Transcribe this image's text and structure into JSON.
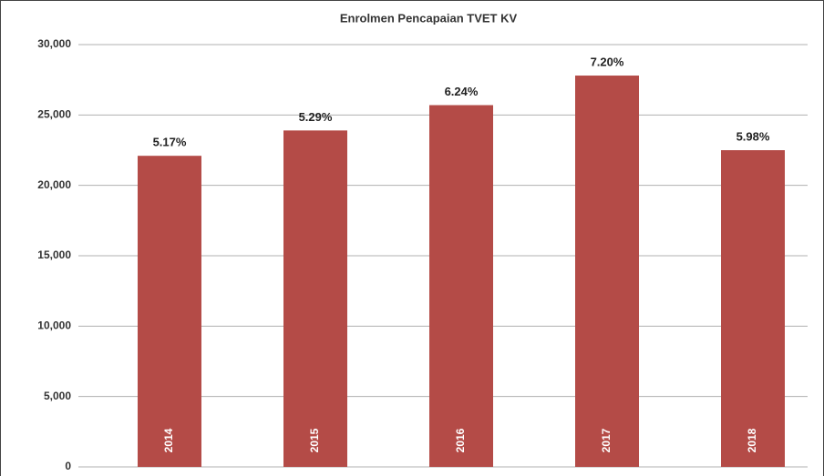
{
  "chart_data": {
    "type": "bar",
    "title": "Enrolmen Pencapaian TVET KV",
    "categories": [
      "2014",
      "2015",
      "2016",
      "2017",
      "2018"
    ],
    "values": [
      22100,
      23900,
      25700,
      27800,
      22500
    ],
    "bar_labels": [
      "5.17%",
      "5.29%",
      "6.24%",
      "7.20%",
      "5.98%"
    ],
    "color": "#b44b47",
    "ylim": [
      0,
      30000
    ],
    "yticks": [
      0,
      {
        "value": 5000,
        "label": "5,000"
      },
      {
        "value": 10000,
        "label": "10,000"
      },
      {
        "value": 15000,
        "label": "15,000"
      },
      {
        "value": 20000,
        "label": "20,000"
      },
      {
        "value": 25000,
        "label": "25,000"
      },
      {
        "value": 30000,
        "label": "30,000"
      }
    ],
    "grid": true
  }
}
